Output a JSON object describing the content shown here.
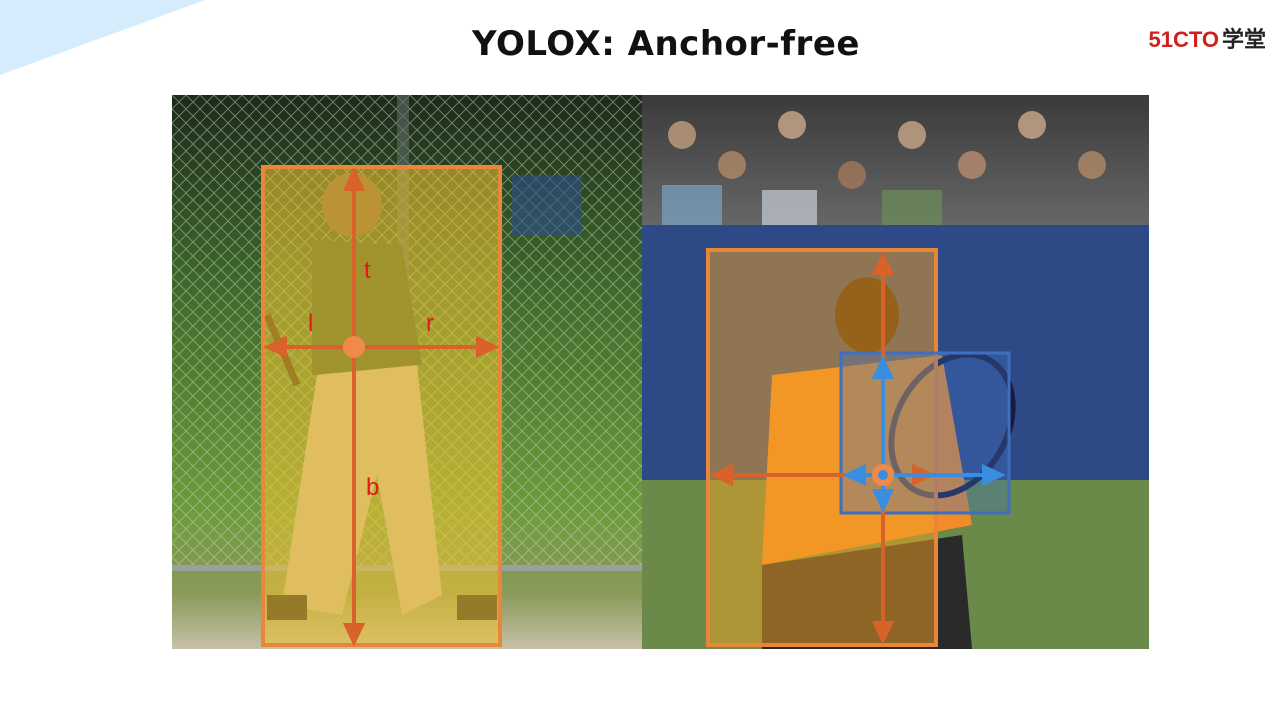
{
  "slide": {
    "title": "YOLOX: Anchor-free",
    "logo": {
      "brand": "51CTO",
      "suffix": "学堂"
    }
  },
  "figure": {
    "left_panel": {
      "scene": "baseball-batter",
      "labels": {
        "top": "t",
        "left": "l",
        "right": "r",
        "bottom": "b"
      }
    },
    "right_panel": {
      "scene": "tennis-player"
    }
  },
  "colors": {
    "box_orange": "#e8863a",
    "arrow_orange": "#d9622a",
    "center_orange": "#f08a4b",
    "box_blue": "#3f6fbf",
    "arrow_blue": "#3a8ee0",
    "label_red": "#e01a1a",
    "logo_red": "#d0201c"
  }
}
